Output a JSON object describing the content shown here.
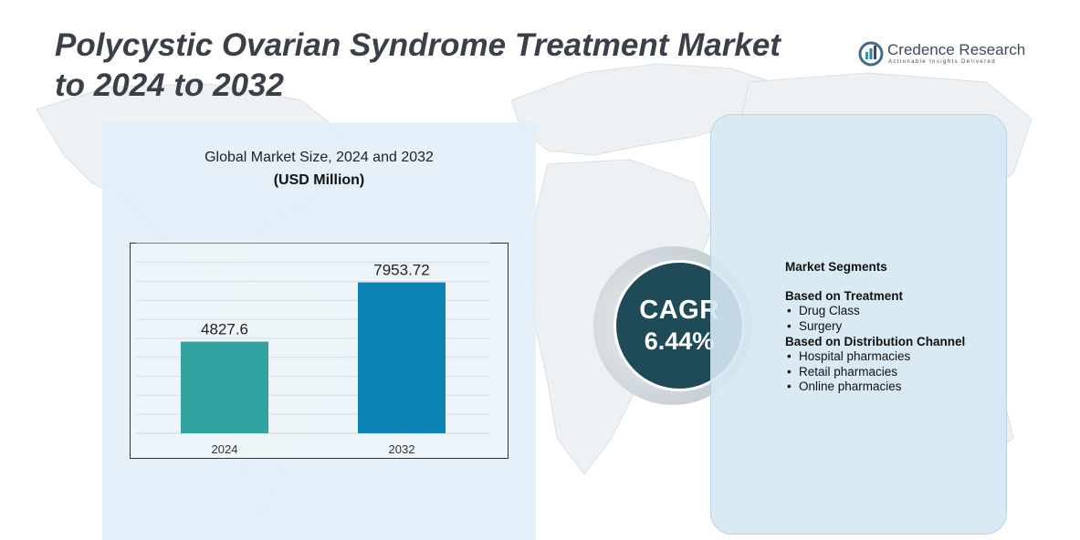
{
  "title": {
    "line1": "Polycystic Ovarian Syndrome Treatment Market",
    "line2": "to 2024 to 2032"
  },
  "logo": {
    "name": "Credence Research",
    "tagline": "Actionable Insights Delivered"
  },
  "colors": {
    "bar_2024": "#33a3a2",
    "bar_2032": "#0d82b4",
    "cagr_fill": "#1f4a57",
    "panel": "#e2eef7",
    "title": "#3a3f4a"
  },
  "chart_data": {
    "type": "bar",
    "title": "Global Market Size, 2024 and 2032",
    "unit": "(USD Million)",
    "categories": [
      "2024",
      "2032"
    ],
    "values": [
      4827.6,
      7953.72
    ],
    "value_labels": [
      "4827.6",
      "7953.72"
    ],
    "ylim": [
      0,
      10000
    ],
    "grid": true,
    "y_axis_labels_shown": false
  },
  "cagr": {
    "label": "CAGR",
    "value": "6.44%"
  },
  "segments": {
    "title": "Market Segments",
    "groups": [
      {
        "title": "Based on Treatment",
        "items": [
          "Drug Class",
          "Surgery"
        ]
      },
      {
        "title": "Based on Distribution Channel",
        "items": [
          "Hospital pharmacies",
          "Retail pharmacies",
          "Online pharmacies"
        ]
      }
    ]
  }
}
